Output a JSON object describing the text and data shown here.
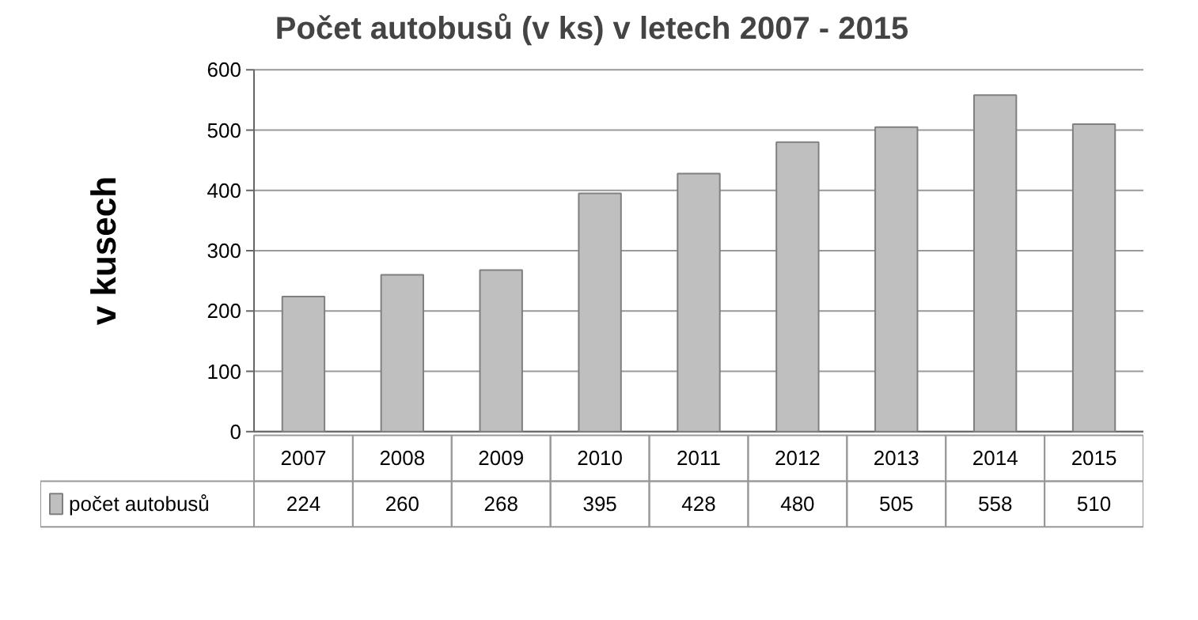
{
  "chart_data": {
    "type": "bar",
    "title": "Počet autobusů (v ks) v letech 2007 - 2015",
    "ylabel": "v kusech",
    "categories": [
      "2007",
      "2008",
      "2009",
      "2010",
      "2011",
      "2012",
      "2013",
      "2014",
      "2015"
    ],
    "series": [
      {
        "name": "počet autobusů",
        "color": "#bfbfbf",
        "values": [
          224,
          260,
          268,
          395,
          428,
          480,
          505,
          558,
          510
        ]
      }
    ],
    "ylim": [
      0,
      600
    ],
    "yticks": [
      0,
      100,
      200,
      300,
      400,
      500,
      600
    ],
    "grid": "y",
    "legend": "bottom",
    "data_labels": true
  }
}
